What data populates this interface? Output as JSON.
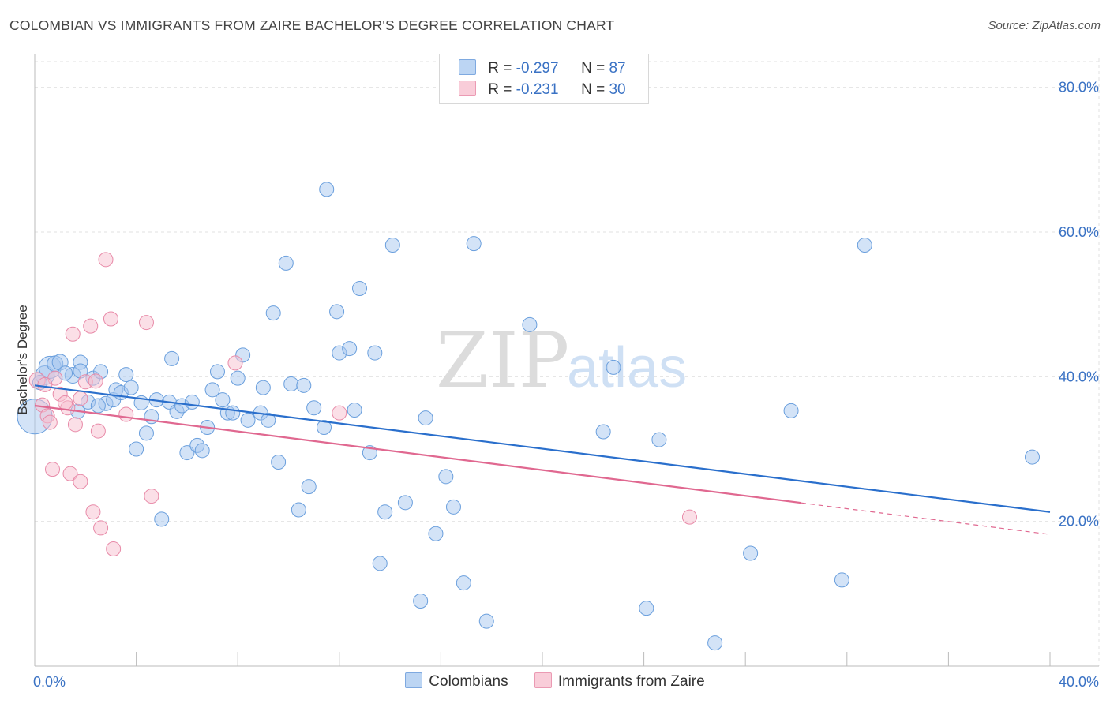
{
  "title": "COLOMBIAN VS IMMIGRANTS FROM ZAIRE BACHELOR'S DEGREE CORRELATION CHART",
  "source": "Source: ZipAtlas.com",
  "watermark": {
    "zip": "ZIP",
    "atlas": "atlas"
  },
  "colors": {
    "blue_fill": "#a8c8f0",
    "blue_stroke": "#6a9fdd",
    "blue_line": "#2a6fcc",
    "pink_fill": "#f7bfd0",
    "pink_stroke": "#e88aa8",
    "pink_line": "#e06890",
    "grid": "#e2e2e2",
    "tick_text": "#3a72c4"
  },
  "legend_top": [
    {
      "r_label": "R = ",
      "r_value": "-0.297",
      "n_label": "N = ",
      "n_value": "87"
    },
    {
      "r_label": "R = ",
      "r_value": "-0.231",
      "n_label": "N = ",
      "n_value": "30"
    }
  ],
  "chart_data": {
    "type": "scatter",
    "title": "COLOMBIAN VS IMMIGRANTS FROM ZAIRE BACHELOR'S DEGREE CORRELATION CHART",
    "xlabel": "",
    "ylabel": "Bachelor's Degree",
    "xlim": [
      0,
      40
    ],
    "ylim": [
      0,
      84
    ],
    "x_tick_labels": [
      {
        "value": 0,
        "label": "0.0%"
      },
      {
        "value": 40,
        "label": "40.0%"
      }
    ],
    "y_tick_labels": [
      {
        "value": 20,
        "label": "20.0%"
      },
      {
        "value": 40,
        "label": "40.0%"
      },
      {
        "value": 60,
        "label": "60.0%"
      },
      {
        "value": 80,
        "label": "80.0%"
      }
    ],
    "grid": true,
    "legend_position": "bottom",
    "series": [
      {
        "name": "Colombians",
        "color": "#a8c8f0",
        "trend": {
          "x": [
            0,
            40
          ],
          "y": [
            38.8,
            21.3
          ],
          "dashed_from": null
        },
        "points": [
          [
            0.0,
            34.5,
            22
          ],
          [
            0.4,
            40.2,
            12
          ],
          [
            0.6,
            41.3,
            14
          ],
          [
            0.8,
            41.8,
            10
          ],
          [
            1.0,
            42.0,
            10
          ],
          [
            1.5,
            40.2,
            10
          ],
          [
            1.7,
            35.2,
            9
          ],
          [
            1.8,
            42.0,
            9
          ],
          [
            1.8,
            40.8,
            9
          ],
          [
            2.1,
            36.5,
            9
          ],
          [
            2.3,
            39.8,
            9
          ],
          [
            2.6,
            40.7,
            9
          ],
          [
            2.8,
            36.3,
            9
          ],
          [
            3.1,
            36.8,
            9
          ],
          [
            3.2,
            38.2,
            9
          ],
          [
            3.4,
            37.8,
            9
          ],
          [
            3.6,
            40.3,
            9
          ],
          [
            3.8,
            38.5,
            9
          ],
          [
            4.0,
            30.0,
            9
          ],
          [
            4.2,
            36.4,
            9
          ],
          [
            4.4,
            32.2,
            9
          ],
          [
            4.6,
            34.5,
            9
          ],
          [
            4.8,
            36.8,
            9
          ],
          [
            5.0,
            20.3,
            9
          ],
          [
            5.3,
            36.5,
            9
          ],
          [
            5.4,
            42.5,
            9
          ],
          [
            5.6,
            35.2,
            9
          ],
          [
            5.8,
            36.0,
            9
          ],
          [
            6.0,
            29.5,
            9
          ],
          [
            6.2,
            36.5,
            9
          ],
          [
            6.4,
            30.5,
            9
          ],
          [
            6.6,
            29.8,
            9
          ],
          [
            6.8,
            33.0,
            9
          ],
          [
            7.0,
            38.2,
            9
          ],
          [
            7.2,
            40.7,
            9
          ],
          [
            7.4,
            36.8,
            9
          ],
          [
            7.6,
            35.0,
            9
          ],
          [
            7.8,
            35.0,
            9
          ],
          [
            8.0,
            39.8,
            9
          ],
          [
            8.2,
            43.0,
            9
          ],
          [
            8.4,
            34.0,
            9
          ],
          [
            8.9,
            35.0,
            9
          ],
          [
            9.0,
            38.5,
            9
          ],
          [
            9.2,
            34.0,
            9
          ],
          [
            9.4,
            48.8,
            9
          ],
          [
            9.6,
            28.2,
            9
          ],
          [
            9.9,
            55.7,
            9
          ],
          [
            10.1,
            39.0,
            9
          ],
          [
            10.4,
            21.6,
            9
          ],
          [
            10.6,
            38.8,
            9
          ],
          [
            10.8,
            24.8,
            9
          ],
          [
            11.0,
            35.7,
            9
          ],
          [
            11.4,
            33.0,
            9
          ],
          [
            11.5,
            65.9,
            9
          ],
          [
            11.9,
            49.0,
            9
          ],
          [
            12.0,
            43.3,
            9
          ],
          [
            12.4,
            43.9,
            9
          ],
          [
            12.6,
            35.4,
            9
          ],
          [
            12.8,
            52.2,
            9
          ],
          [
            13.2,
            29.5,
            9
          ],
          [
            13.4,
            43.3,
            9
          ],
          [
            13.6,
            14.2,
            9
          ],
          [
            13.8,
            21.3,
            9
          ],
          [
            14.1,
            58.2,
            9
          ],
          [
            14.6,
            22.6,
            9
          ],
          [
            15.2,
            9.0,
            9
          ],
          [
            15.4,
            34.3,
            9
          ],
          [
            15.8,
            18.3,
            9
          ],
          [
            16.2,
            26.2,
            9
          ],
          [
            16.5,
            22.0,
            9
          ],
          [
            16.9,
            11.5,
            9
          ],
          [
            17.3,
            58.4,
            9
          ],
          [
            17.8,
            6.2,
            9
          ],
          [
            19.5,
            47.2,
            9
          ],
          [
            22.4,
            32.4,
            9
          ],
          [
            22.8,
            41.3,
            9
          ],
          [
            24.1,
            8.0,
            9
          ],
          [
            24.6,
            31.3,
            9
          ],
          [
            26.8,
            3.2,
            9
          ],
          [
            28.2,
            15.6,
            9
          ],
          [
            29.8,
            35.3,
            9
          ],
          [
            31.8,
            11.9,
            9
          ],
          [
            32.7,
            58.2,
            9
          ],
          [
            39.3,
            28.9,
            9
          ],
          [
            0.2,
            39.2,
            9
          ],
          [
            1.2,
            40.5,
            9
          ],
          [
            2.5,
            36.0,
            9
          ]
        ]
      },
      {
        "name": "Immigrants from Zaire",
        "color": "#f7bfd0",
        "trend": {
          "x": [
            0,
            40
          ],
          "y": [
            36.0,
            18.2
          ],
          "dashed_from": 30.2
        },
        "points": [
          [
            0.1,
            39.5,
            10
          ],
          [
            0.3,
            36.1,
            9
          ],
          [
            0.5,
            34.6,
            9
          ],
          [
            0.6,
            33.7,
            9
          ],
          [
            0.7,
            27.2,
            9
          ],
          [
            0.8,
            39.8,
            9
          ],
          [
            1.0,
            37.6,
            9
          ],
          [
            1.3,
            35.7,
            9
          ],
          [
            1.4,
            26.6,
            9
          ],
          [
            1.5,
            45.9,
            9
          ],
          [
            1.6,
            33.4,
            9
          ],
          [
            1.8,
            25.5,
            9
          ],
          [
            1.8,
            37.0,
            9
          ],
          [
            2.0,
            39.3,
            9
          ],
          [
            2.2,
            47.0,
            9
          ],
          [
            2.3,
            21.3,
            9
          ],
          [
            2.4,
            39.4,
            9
          ],
          [
            2.5,
            32.5,
            9
          ],
          [
            2.6,
            19.1,
            9
          ],
          [
            2.8,
            56.2,
            9
          ],
          [
            3.0,
            48.0,
            9
          ],
          [
            3.1,
            16.2,
            9
          ],
          [
            3.6,
            34.8,
            9
          ],
          [
            4.4,
            47.5,
            9
          ],
          [
            4.6,
            23.5,
            9
          ],
          [
            7.9,
            41.9,
            9
          ],
          [
            12.0,
            35.0,
            9
          ],
          [
            25.8,
            20.6,
            9
          ],
          [
            0.4,
            38.9,
            9
          ],
          [
            1.2,
            36.4,
            9
          ]
        ]
      }
    ]
  },
  "legend_bottom": [
    {
      "label": "Colombians"
    },
    {
      "label": "Immigrants from Zaire"
    }
  ]
}
